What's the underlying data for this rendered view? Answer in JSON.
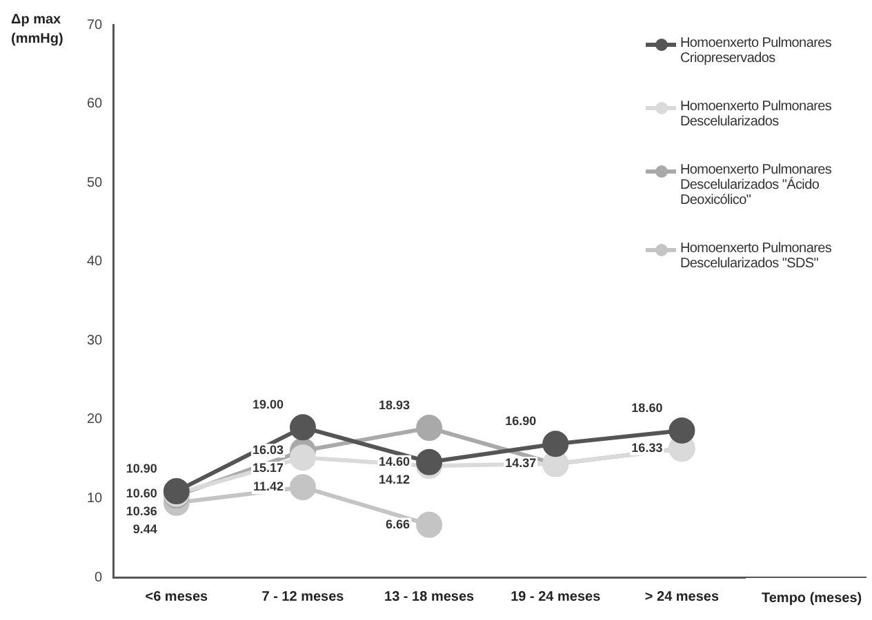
{
  "chart_data": {
    "type": "line",
    "xlabel": "Tempo (meses)",
    "ylabel": "Δp max (mmHg)",
    "categories": [
      "<6 meses",
      "7 - 12 meses",
      "13 - 18 meses",
      "19 - 24 meses",
      "> 24 meses"
    ],
    "ylim": [
      0,
      70
    ],
    "yticks": [
      0,
      10,
      20,
      30,
      40,
      50,
      60,
      70
    ],
    "grid": false,
    "legend": "top right",
    "marker": "circle",
    "line_style": "solid",
    "series": [
      {
        "name": "Homoenxerto Pulmonares Criopreservados",
        "color": "#555555",
        "values": [
          10.9,
          19.0,
          14.6,
          16.9,
          18.6
        ],
        "value_labels": [
          "10.90",
          "19.00",
          "14.60",
          "16.90",
          "18.60"
        ]
      },
      {
        "name": "Homoenxerto Pulmonares Descelularizados",
        "color": "#dadada",
        "values": [
          10.6,
          15.17,
          14.12,
          14.4,
          16.3
        ],
        "value_labels": [
          "10.60",
          "15.17",
          "14.12",
          null,
          null
        ]
      },
      {
        "name": "Homoenxerto Pulmonares Descelularizados \"Ácido Deoxicólico\"",
        "color": "#a9a9a9",
        "values": [
          10.36,
          16.03,
          18.93,
          14.37,
          16.33
        ],
        "value_labels": [
          "10.36",
          "16.03",
          "18.93",
          "14.37",
          "16.33"
        ]
      },
      {
        "name": "Homoenxerto Pulmonares Descelularizados \"SDS\"",
        "color": "#c4c4c4",
        "values": [
          9.44,
          11.42,
          6.66,
          null,
          null
        ],
        "value_labels": [
          "9.44",
          "11.42",
          "6.66",
          null,
          null
        ]
      }
    ]
  }
}
